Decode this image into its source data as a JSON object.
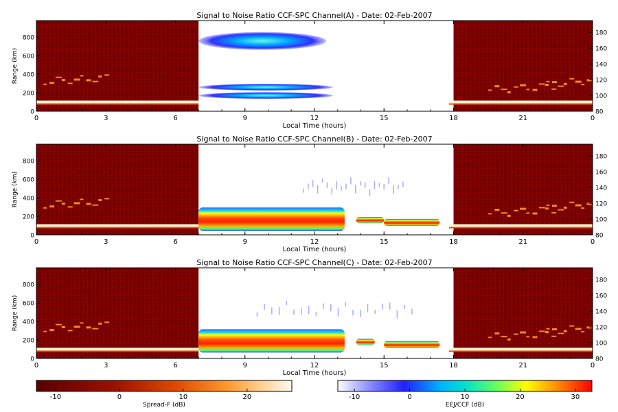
{
  "chart_data": [
    {
      "type": "heatmap",
      "title": "Signal to Noise Ratio CCF-SPC Channel(A) - Date: 02-Feb-2007",
      "xlabel": "Local Time (hours)",
      "ylabel": "Range (km)",
      "x_ticks": [
        "0",
        "3",
        "6",
        "9",
        "12",
        "15",
        "18",
        "21",
        "0"
      ],
      "y_ticks": [
        "0",
        "200",
        "400",
        "600",
        "800"
      ],
      "y2_ticks": [
        "80",
        "100",
        "120",
        "140",
        "160",
        "180"
      ],
      "xlim": [
        0,
        24
      ],
      "ylim": [
        0,
        980
      ],
      "y2lim": [
        80,
        195
      ],
      "colorscale_day": "EEJ/CCF",
      "colorscale_night": "Spread-F",
      "day_window_hours": [
        7,
        18
      ],
      "echoes": [
        {
          "region": "night",
          "x": [
            0,
            7
          ],
          "y": 100,
          "snr": 22
        },
        {
          "region": "night",
          "x": [
            0.3,
            3.2
          ],
          "y": 330,
          "snr": 12
        },
        {
          "region": "night",
          "x": [
            17.8,
            24
          ],
          "y": 100,
          "snr": 22
        },
        {
          "region": "night",
          "x": [
            19.5,
            22.5
          ],
          "y": 240,
          "snr": 14
        },
        {
          "region": "night",
          "x": [
            22,
            24
          ],
          "y": 300,
          "snr": 12
        },
        {
          "region": "day",
          "x": [
            7,
            12.5
          ],
          "y": 760,
          "snr": 5
        },
        {
          "region": "day",
          "x": [
            7,
            12.8
          ],
          "y": 260,
          "snr": 6
        },
        {
          "region": "day",
          "x": [
            7,
            12.8
          ],
          "y": 170,
          "snr": 6
        }
      ]
    },
    {
      "type": "heatmap",
      "title": "Signal to Noise Ratio CCF-SPC Channel(B) - Date: 02-Feb-2007",
      "xlabel": "Local Time (hours)",
      "ylabel": "Range (km)",
      "x_ticks": [
        "0",
        "3",
        "6",
        "9",
        "12",
        "15",
        "18",
        "21",
        "0"
      ],
      "y_ticks": [
        "0",
        "200",
        "400",
        "600",
        "800"
      ],
      "y2_ticks": [
        "80",
        "100",
        "120",
        "140",
        "160",
        "180"
      ],
      "xlim": [
        0,
        24
      ],
      "ylim": [
        0,
        980
      ],
      "y2lim": [
        80,
        195
      ],
      "colorscale_day": "EEJ/CCF",
      "colorscale_night": "Spread-F",
      "day_window_hours": [
        7,
        18
      ],
      "echoes": [
        {
          "region": "night",
          "x": [
            0,
            7
          ],
          "y": 100,
          "snr": 22
        },
        {
          "region": "night",
          "x": [
            0.3,
            3.2
          ],
          "y": 330,
          "snr": 12
        },
        {
          "region": "night",
          "x": [
            17.8,
            24
          ],
          "y": 100,
          "snr": 22
        },
        {
          "region": "night",
          "x": [
            19.5,
            22.5
          ],
          "y": 240,
          "snr": 14
        },
        {
          "region": "night",
          "x": [
            22,
            24
          ],
          "y": 300,
          "snr": 12
        },
        {
          "region": "day",
          "x": [
            7,
            13.3
          ],
          "y": 170,
          "snr": 30
        },
        {
          "region": "day",
          "x": [
            13.8,
            15.0
          ],
          "y": 155,
          "snr": 15
        },
        {
          "region": "day",
          "x": [
            15.0,
            17.4
          ],
          "y": 135,
          "snr": 22
        },
        {
          "region": "day",
          "x": [
            11.5,
            16.0
          ],
          "y": 560,
          "snr": -5
        }
      ]
    },
    {
      "type": "heatmap",
      "title": "Signal to Noise Ratio CCF-SPC Channel(C) - Date: 02-Feb-2007",
      "xlabel": "Local Time (hours)",
      "ylabel": "Range (km)",
      "x_ticks": [
        "0",
        "3",
        "6",
        "9",
        "12",
        "15",
        "18",
        "21",
        "0"
      ],
      "y_ticks": [
        "0",
        "200",
        "400",
        "600",
        "800"
      ],
      "y2_ticks": [
        "80",
        "100",
        "120",
        "140",
        "160",
        "180"
      ],
      "xlim": [
        0,
        24
      ],
      "ylim": [
        0,
        980
      ],
      "y2lim": [
        80,
        195
      ],
      "colorscale_day": "EEJ/CCF",
      "colorscale_night": "Spread-F",
      "day_window_hours": [
        7,
        18
      ],
      "echoes": [
        {
          "region": "night",
          "x": [
            0,
            7
          ],
          "y": 100,
          "snr": 22
        },
        {
          "region": "night",
          "x": [
            0.3,
            3.2
          ],
          "y": 330,
          "snr": 12
        },
        {
          "region": "night",
          "x": [
            17.8,
            24
          ],
          "y": 100,
          "snr": 22
        },
        {
          "region": "night",
          "x": [
            19.5,
            22.5
          ],
          "y": 240,
          "snr": 14
        },
        {
          "region": "night",
          "x": [
            22,
            24
          ],
          "y": 300,
          "snr": 12
        },
        {
          "region": "day",
          "x": [
            7,
            13.3
          ],
          "y": 190,
          "snr": 30
        },
        {
          "region": "day",
          "x": [
            13.8,
            14.6
          ],
          "y": 175,
          "snr": 15
        },
        {
          "region": "day",
          "x": [
            15.0,
            17.4
          ],
          "y": 150,
          "snr": 22
        },
        {
          "region": "day",
          "x": [
            9.5,
            16.5
          ],
          "y": 560,
          "snr": -5
        }
      ]
    }
  ],
  "colorbars": [
    {
      "label": "Spread-F (dB)",
      "ticks": [
        "-10",
        "0",
        "10",
        "20"
      ],
      "range": [
        -13,
        27
      ],
      "palette": "hot"
    },
    {
      "label": "EEJ/CCF (dB)",
      "ticks": [
        "-10",
        "0",
        "10",
        "20",
        "30"
      ],
      "range": [
        -13,
        33
      ],
      "palette": "rainbow"
    }
  ],
  "colors": {
    "night_background": "#7a0000",
    "day_background": "#ffffff",
    "axis": "#000000"
  }
}
